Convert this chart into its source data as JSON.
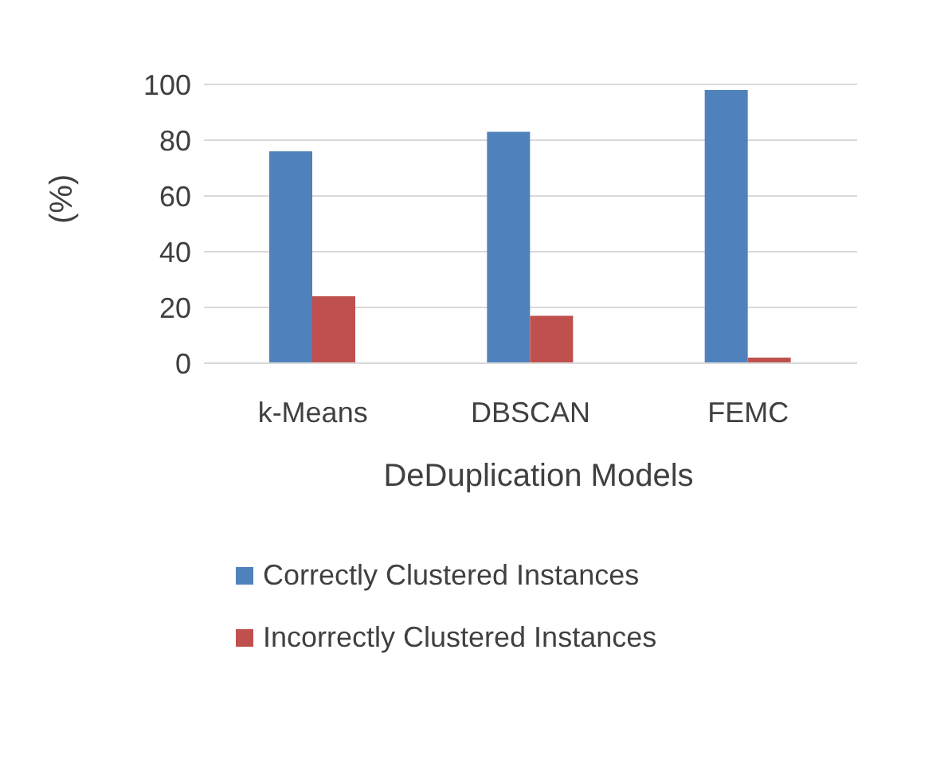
{
  "chart_data": {
    "type": "bar",
    "xlabel": "DeDuplication Models",
    "ylabel": "(%)",
    "categories": [
      "k-Means",
      "DBSCAN",
      "FEMC"
    ],
    "series": [
      {
        "name": "Correctly Clustered Instances",
        "color": "#4f81bd",
        "values": [
          76,
          83,
          98
        ]
      },
      {
        "name": "Incorrectly Clustered Instances",
        "color": "#c0504d",
        "values": [
          24,
          17,
          2
        ]
      }
    ],
    "ylim": [
      0,
      100
    ],
    "yticks": [
      0,
      20,
      40,
      60,
      80,
      100
    ],
    "grid": "y",
    "legend": "bottom"
  }
}
